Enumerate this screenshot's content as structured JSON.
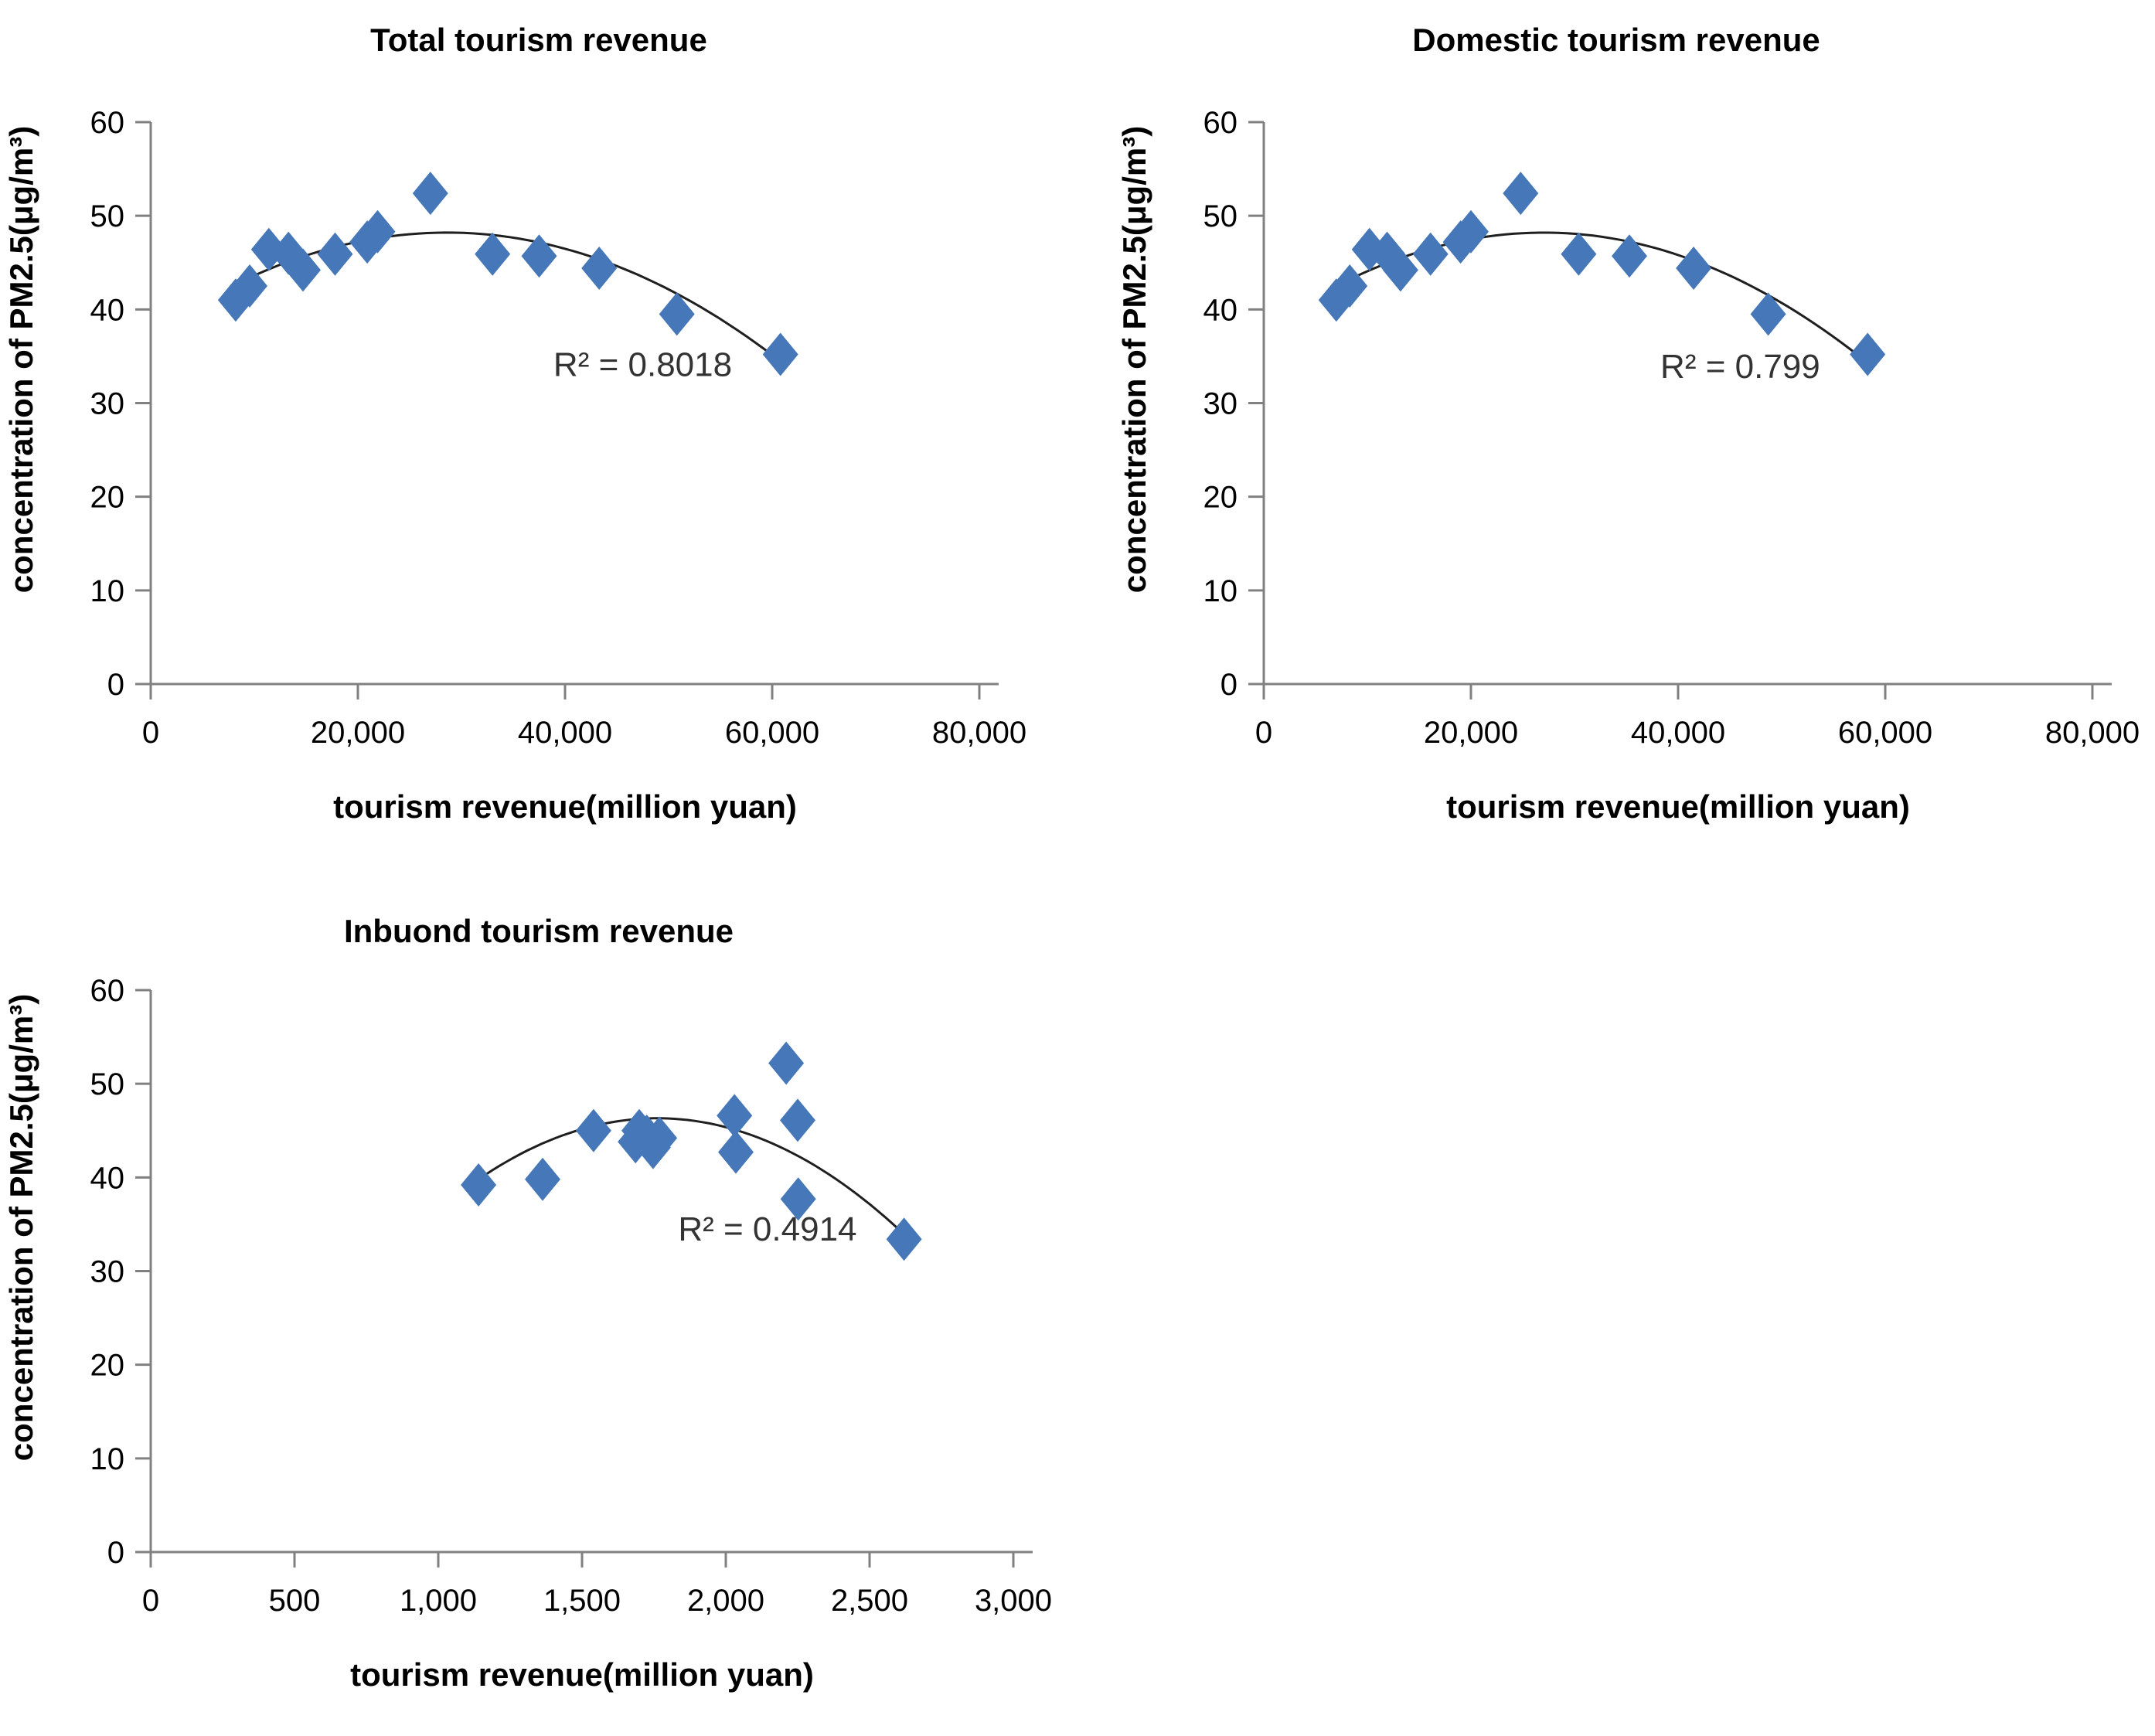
{
  "page": {
    "background": "#ffffff"
  },
  "style": {
    "marker_color": "#4678B9",
    "trend_color": "#1f1f1f",
    "axis_color": "#808080",
    "text_color": "#000000",
    "r2_color": "#333333"
  },
  "chart_data": [
    {
      "id": "total",
      "type": "scatter",
      "title": "Total tourism revenue",
      "xlabel": "tourism revenue(million yuan)",
      "ylabel": "concentration of PM2.5(μg/m³)",
      "marker": "diamond",
      "grid": false,
      "xlim": [
        0,
        80000
      ],
      "ylim": [
        0,
        60
      ],
      "xticks": [
        {
          "v": 0,
          "label": "0"
        },
        {
          "v": 20000,
          "label": "20,000"
        },
        {
          "v": 40000,
          "label": "40,000"
        },
        {
          "v": 60000,
          "label": "60,000"
        },
        {
          "v": 80000,
          "label": "80,000"
        }
      ],
      "yticks": [
        {
          "v": 0,
          "label": "0"
        },
        {
          "v": 10,
          "label": "10"
        },
        {
          "v": 20,
          "label": "20"
        },
        {
          "v": 30,
          "label": "30"
        },
        {
          "v": 40,
          "label": "40"
        },
        {
          "v": 50,
          "label": "50"
        },
        {
          "v": 60,
          "label": "60"
        }
      ],
      "points": [
        [
          8200,
          41.0
        ],
        [
          9550,
          42.5
        ],
        [
          11400,
          46.4
        ],
        [
          13300,
          46.0
        ],
        [
          14700,
          44.2
        ],
        [
          17800,
          45.9
        ],
        [
          20900,
          47.2
        ],
        [
          21900,
          48.3
        ],
        [
          27000,
          52.4
        ],
        [
          33000,
          45.9
        ],
        [
          37500,
          45.7
        ],
        [
          43300,
          44.4
        ],
        [
          50800,
          39.5
        ],
        [
          60800,
          35.2
        ]
      ],
      "trendline": {
        "kind": "polynomial",
        "degree": 2,
        "anchors": [
          [
            8200,
            42.7
          ],
          [
            28000,
            48.2
          ],
          [
            61000,
            34.3
          ]
        ]
      },
      "annotation": {
        "text": "R² = 0.8018",
        "x": 47500,
        "y": 34.2
      }
    },
    {
      "id": "domestic",
      "type": "scatter",
      "title": "Domestic tourism revenue",
      "xlabel": "tourism revenue(million yuan)",
      "ylabel": "concentration of PM2.5(μg/m³)",
      "marker": "diamond",
      "grid": false,
      "xlim": [
        0,
        80000
      ],
      "ylim": [
        0,
        60
      ],
      "xticks": [
        {
          "v": 0,
          "label": "0"
        },
        {
          "v": 20000,
          "label": "20,000"
        },
        {
          "v": 40000,
          "label": "40,000"
        },
        {
          "v": 60000,
          "label": "60,000"
        },
        {
          "v": 80000,
          "label": "80,000"
        }
      ],
      "yticks": [
        {
          "v": 0,
          "label": "0"
        },
        {
          "v": 10,
          "label": "10"
        },
        {
          "v": 20,
          "label": "20"
        },
        {
          "v": 30,
          "label": "30"
        },
        {
          "v": 40,
          "label": "40"
        },
        {
          "v": 50,
          "label": "50"
        },
        {
          "v": 60,
          "label": "60"
        }
      ],
      "points": [
        [
          7000,
          41.0
        ],
        [
          8300,
          42.5
        ],
        [
          10200,
          46.4
        ],
        [
          11900,
          46.0
        ],
        [
          13200,
          44.2
        ],
        [
          16100,
          45.9
        ],
        [
          19000,
          47.2
        ],
        [
          20000,
          48.3
        ],
        [
          24800,
          52.4
        ],
        [
          30400,
          45.9
        ],
        [
          35300,
          45.7
        ],
        [
          41500,
          44.4
        ],
        [
          48700,
          39.5
        ],
        [
          58300,
          35.2
        ]
      ],
      "trendline": {
        "kind": "polynomial",
        "degree": 2,
        "anchors": [
          [
            7000,
            42.5
          ],
          [
            26500,
            48.2
          ],
          [
            58300,
            34.3
          ]
        ]
      },
      "annotation": {
        "text": "R² = 0.799",
        "x": 46000,
        "y": 34.0
      }
    },
    {
      "id": "inbound",
      "type": "scatter",
      "title": "Inbuond tourism revenue",
      "xlabel": "tourism revenue(million yuan)",
      "ylabel": "concentration of PM2.5(μg/m³)",
      "marker": "diamond",
      "grid": false,
      "xlim": [
        0,
        3000
      ],
      "ylim": [
        0,
        60
      ],
      "xticks": [
        {
          "v": 0,
          "label": "0"
        },
        {
          "v": 500,
          "label": "500"
        },
        {
          "v": 1000,
          "label": "1,000"
        },
        {
          "v": 1500,
          "label": "1,500"
        },
        {
          "v": 2000,
          "label": "2,000"
        },
        {
          "v": 2500,
          "label": "2,500"
        },
        {
          "v": 3000,
          "label": "3,000"
        }
      ],
      "yticks": [
        {
          "v": 0,
          "label": "0"
        },
        {
          "v": 10,
          "label": "10"
        },
        {
          "v": 20,
          "label": "20"
        },
        {
          "v": 30,
          "label": "30"
        },
        {
          "v": 40,
          "label": "40"
        },
        {
          "v": 50,
          "label": "50"
        },
        {
          "v": 60,
          "label": "60"
        }
      ],
      "points": [
        [
          1140,
          39.2
        ],
        [
          1363,
          39.8
        ],
        [
          1540,
          45.0
        ],
        [
          1686,
          43.8
        ],
        [
          1699,
          45.0
        ],
        [
          1725,
          44.4
        ],
        [
          1747,
          43.2
        ],
        [
          1769,
          44.2
        ],
        [
          2030,
          46.6
        ],
        [
          2035,
          42.7
        ],
        [
          2210,
          52.2
        ],
        [
          2250,
          46.1
        ],
        [
          2252,
          37.7
        ],
        [
          2620,
          33.4
        ]
      ],
      "trendline": {
        "kind": "polynomial",
        "degree": 2,
        "anchors": [
          [
            1140,
            39.8
          ],
          [
            1900,
            46.0
          ],
          [
            2600,
            34.5
          ]
        ]
      },
      "annotation": {
        "text": "R² = 0.4914",
        "x": 2145,
        "y": 34.6
      }
    }
  ]
}
